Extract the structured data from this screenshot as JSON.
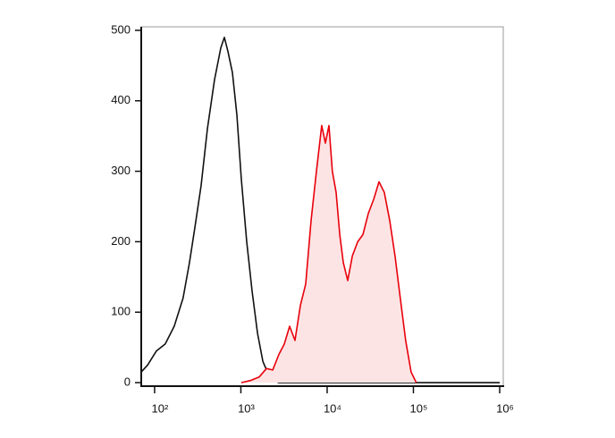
{
  "chart_data": {
    "type": "histogram-overlay",
    "x_scale": "log",
    "xlim": [
      70,
      1100000
    ],
    "ylim": [
      -5,
      505
    ],
    "xticks": [
      {
        "value": 100,
        "label": "10²"
      },
      {
        "value": 1000,
        "label": "10³"
      },
      {
        "value": 10000,
        "label": "10⁴"
      },
      {
        "value": 100000,
        "label": "10⁵"
      },
      {
        "value": 1000000,
        "label": "10⁶"
      }
    ],
    "yticks": [
      0,
      100,
      200,
      300,
      400,
      500
    ],
    "series": [
      {
        "color": "#111111",
        "x": [
          70,
          83,
          105,
          133,
          169,
          214,
          253,
          293,
          346,
          409,
          495,
          585,
          644,
          708,
          798,
          900,
          1010,
          1170,
          1350,
          1560,
          1800,
          2080,
          2400,
          2760,
          1000000
        ],
        "values": [
          15,
          25,
          45,
          55,
          80,
          120,
          170,
          220,
          280,
          360,
          430,
          475,
          490,
          470,
          440,
          380,
          290,
          200,
          130,
          70,
          30,
          12,
          3,
          0,
          0
        ]
      },
      {
        "color": "#e8000b",
        "fill": "#fde4e4",
        "x": [
          1010,
          1290,
          1630,
          1980,
          2340,
          2760,
          3190,
          3670,
          4240,
          4900,
          5650,
          6510,
          7510,
          8660,
          9530,
          10500,
          11500,
          12700,
          14000,
          15400,
          17300,
          19600,
          22600,
          26000,
          30000,
          34600,
          39900,
          46000,
          53100,
          61200,
          70500,
          81300,
          94000,
          108000
        ],
        "values": [
          0,
          3,
          8,
          20,
          18,
          40,
          55,
          80,
          60,
          110,
          140,
          230,
          300,
          365,
          340,
          365,
          300,
          270,
          210,
          170,
          145,
          180,
          200,
          210,
          240,
          260,
          285,
          270,
          230,
          180,
          120,
          60,
          15,
          0
        ]
      }
    ]
  }
}
